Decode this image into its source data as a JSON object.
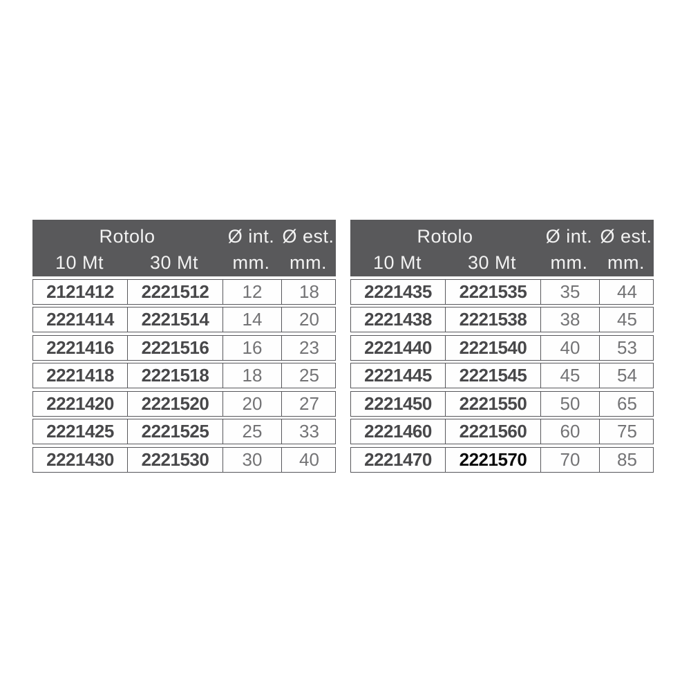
{
  "colors": {
    "header_bg": "#59595b",
    "header_text": "#f2f2f2",
    "border": "#56565a",
    "code_text": "#48484a",
    "value_text": "#737375",
    "highlight_text": "#0b0b0b",
    "row_bg": "#fefefe",
    "page_bg": "#ffffff"
  },
  "header": {
    "group_label": "Rotolo",
    "col_10mt": "10 Mt",
    "col_30mt": "30 Mt",
    "diam_int": "Ø int.",
    "diam_est": "Ø est.",
    "unit": "mm."
  },
  "tables": [
    {
      "id": "left",
      "rows": [
        {
          "code_10mt": "2121412",
          "code_30mt": "2221512",
          "diam_int_mm": "12",
          "diam_est_mm": "18"
        },
        {
          "code_10mt": "2221414",
          "code_30mt": "2221514",
          "diam_int_mm": "14",
          "diam_est_mm": "20"
        },
        {
          "code_10mt": "2221416",
          "code_30mt": "2221516",
          "diam_int_mm": "16",
          "diam_est_mm": "23"
        },
        {
          "code_10mt": "2221418",
          "code_30mt": "2221518",
          "diam_int_mm": "18",
          "diam_est_mm": "25"
        },
        {
          "code_10mt": "2221420",
          "code_30mt": "2221520",
          "diam_int_mm": "20",
          "diam_est_mm": "27"
        },
        {
          "code_10mt": "2221425",
          "code_30mt": "2221525",
          "diam_int_mm": "25",
          "diam_est_mm": "33"
        },
        {
          "code_10mt": "2221430",
          "code_30mt": "2221530",
          "diam_int_mm": "30",
          "diam_est_mm": "40"
        }
      ]
    },
    {
      "id": "right",
      "rows": [
        {
          "code_10mt": "2221435",
          "code_30mt": "2221535",
          "diam_int_mm": "35",
          "diam_est_mm": "44"
        },
        {
          "code_10mt": "2221438",
          "code_30mt": "2221538",
          "diam_int_mm": "38",
          "diam_est_mm": "45"
        },
        {
          "code_10mt": "2221440",
          "code_30mt": "2221540",
          "diam_int_mm": "40",
          "diam_est_mm": "53"
        },
        {
          "code_10mt": "2221445",
          "code_30mt": "2221545",
          "diam_int_mm": "45",
          "diam_est_mm": "54"
        },
        {
          "code_10mt": "2221450",
          "code_30mt": "2221550",
          "diam_int_mm": "50",
          "diam_est_mm": "65"
        },
        {
          "code_10mt": "2221460",
          "code_30mt": "2221560",
          "diam_int_mm": "60",
          "diam_est_mm": "75"
        },
        {
          "code_10mt": "2221470",
          "code_30mt": "2221570",
          "diam_int_mm": "70",
          "diam_est_mm": "85",
          "highlight_30mt": true
        }
      ]
    }
  ]
}
